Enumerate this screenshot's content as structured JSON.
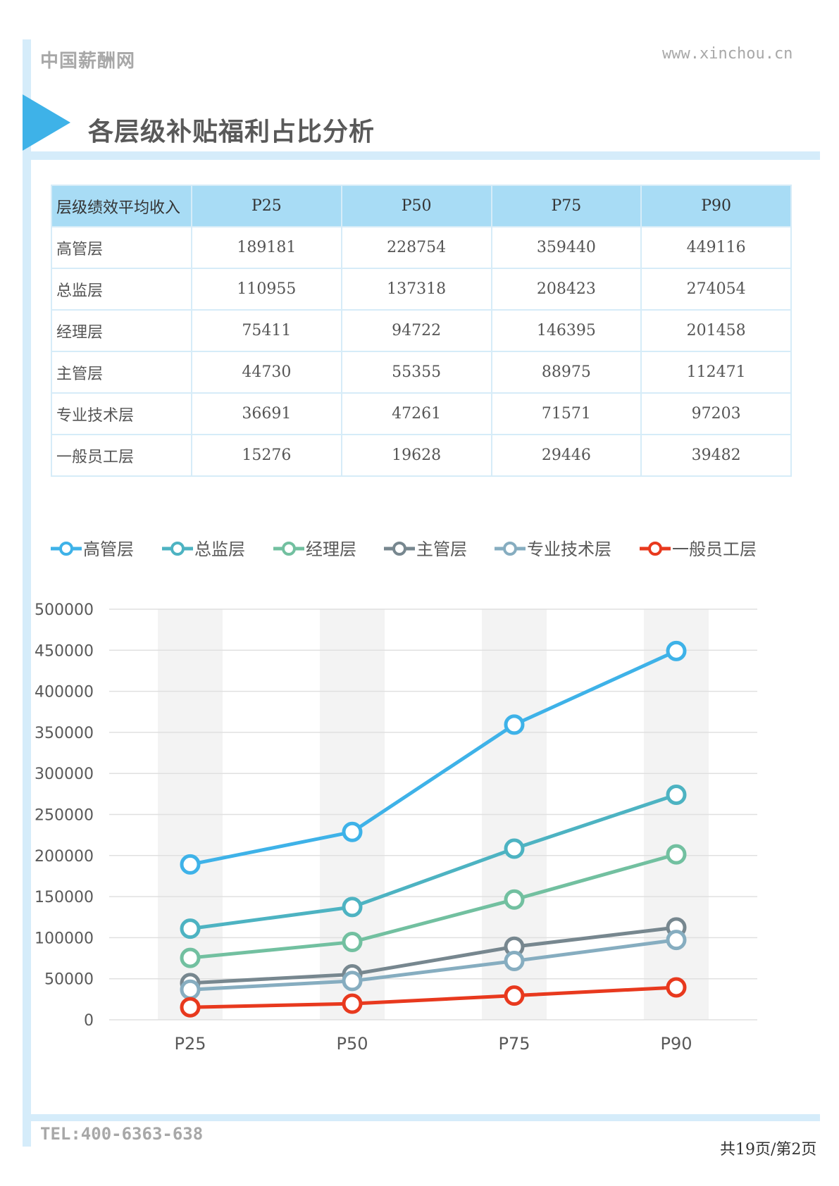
{
  "header": {
    "logo_text": "中国薪酬网",
    "url": "www.xinchou.cn"
  },
  "page_title": "各层级补贴福利占比分析",
  "table": {
    "columns": [
      "层级绩效平均收入",
      "P25",
      "P50",
      "P75",
      "P90"
    ],
    "rows": [
      [
        "高管层",
        "189181",
        "228754",
        "359440",
        "449116"
      ],
      [
        "总监层",
        "110955",
        "137318",
        "208423",
        "274054"
      ],
      [
        "经理层",
        "75411",
        "94722",
        "146395",
        "201458"
      ],
      [
        "主管层",
        "44730",
        "55355",
        "88975",
        "112471"
      ],
      [
        "专业技术层",
        "36691",
        "47261",
        "71571",
        "97203"
      ],
      [
        "一般员工层",
        "15276",
        "19628",
        "29446",
        "39482"
      ]
    ]
  },
  "chart_data": {
    "type": "line",
    "categories": [
      "P25",
      "P50",
      "P75",
      "P90"
    ],
    "ylim": [
      0,
      500000
    ],
    "yticks": [
      0,
      50000,
      100000,
      150000,
      200000,
      250000,
      300000,
      350000,
      400000,
      450000,
      500000
    ],
    "legend_position": "top",
    "grid": true,
    "series": [
      {
        "name": "高管层",
        "color": "#3eb2e8",
        "values": [
          189181,
          228754,
          359440,
          449116
        ]
      },
      {
        "name": "总监层",
        "color": "#4db3c2",
        "values": [
          110955,
          137318,
          208423,
          274054
        ]
      },
      {
        "name": "经理层",
        "color": "#72c0a0",
        "values": [
          75411,
          94722,
          146395,
          201458
        ]
      },
      {
        "name": "主管层",
        "color": "#77878f",
        "values": [
          44730,
          55355,
          88975,
          112471
        ]
      },
      {
        "name": "专业技术层",
        "color": "#86adc0",
        "values": [
          36691,
          47261,
          71571,
          97203
        ]
      },
      {
        "name": "一般员工层",
        "color": "#e8391e",
        "values": [
          15276,
          19628,
          29446,
          39482
        ]
      }
    ]
  },
  "footer": {
    "tel": "TEL:400-6363-638",
    "page": "共19页/第2页"
  }
}
